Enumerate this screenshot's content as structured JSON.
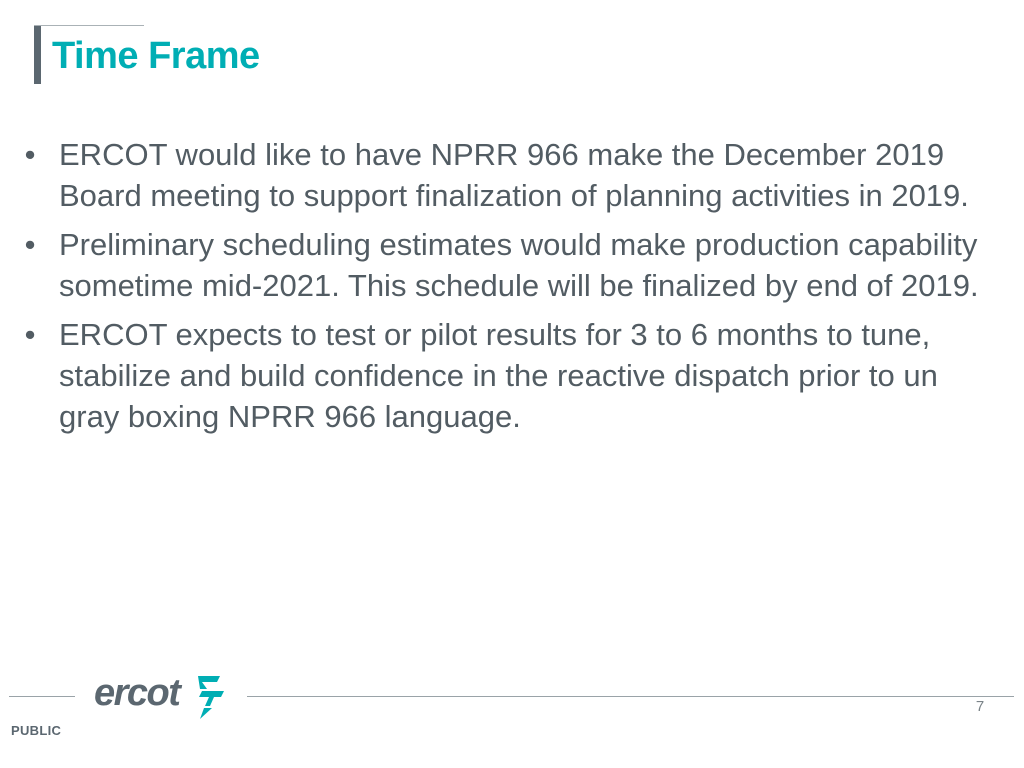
{
  "slide": {
    "title": "Time Frame",
    "bullets": [
      {
        "marker": "•",
        "text": "ERCOT would like to have NPRR 966 make the December 2019 Board meeting to support finalization of planning activities in 2019."
      },
      {
        "marker": "•",
        "text": "Preliminary scheduling estimates would make production capability sometime mid-2021.  This schedule will be finalized by end of 2019."
      },
      {
        "marker": "•",
        "text": "ERCOT expects to test or pilot results for 3 to 6 months to tune, stabilize and build confidence in the reactive dispatch prior to un gray boxing NPRR 966 language."
      }
    ]
  },
  "footer": {
    "logo_text": "ercot",
    "logo_mark_icon": "ercot-arrow-logo-icon",
    "page_number": "7",
    "classification": "PUBLIC"
  },
  "colors": {
    "title": "#00aeb4",
    "body_text": "#525c63",
    "accent_bar": "#5b6770",
    "logo_teal": "#00aeb4",
    "logo_gray": "#5b6770"
  }
}
